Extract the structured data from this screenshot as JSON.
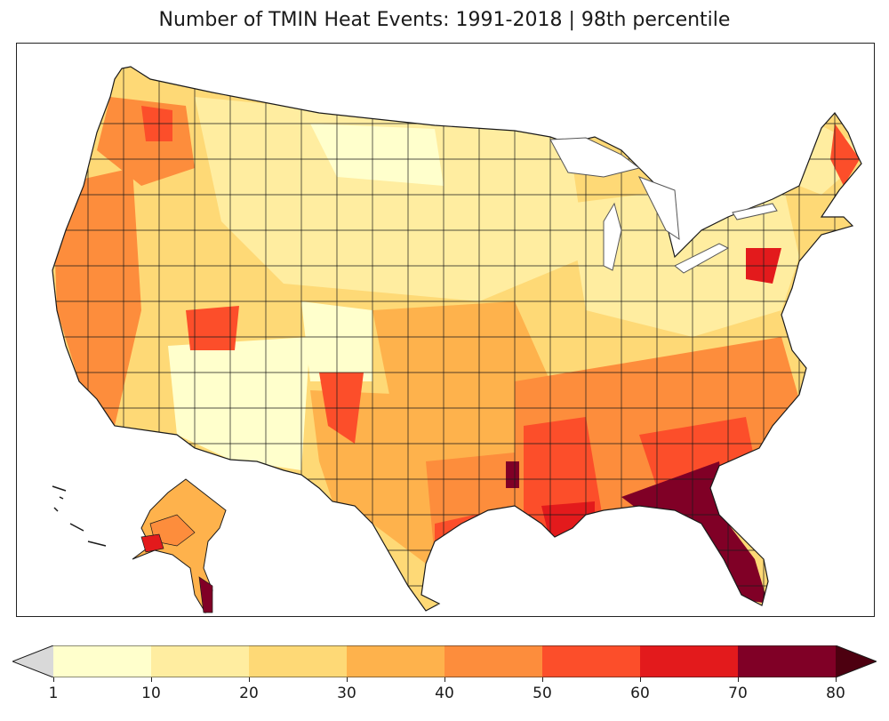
{
  "title": "Number of TMIN Heat Events: 1991-2018 | 98th percentile",
  "map": {
    "region": "Contiguous United States and Alaska",
    "variable": "Number of TMIN heat events"
  },
  "legend": {
    "bins": [
      {
        "range": [
          1,
          10
        ],
        "color": "#ffffcc"
      },
      {
        "range": [
          10,
          20
        ],
        "color": "#ffeda0"
      },
      {
        "range": [
          20,
          30
        ],
        "color": "#fed976"
      },
      {
        "range": [
          30,
          40
        ],
        "color": "#feb24c"
      },
      {
        "range": [
          40,
          50
        ],
        "color": "#fd8d3c"
      },
      {
        "range": [
          50,
          60
        ],
        "color": "#fc4e2a"
      },
      {
        "range": [
          60,
          70
        ],
        "color": "#e31a1c"
      },
      {
        "range": [
          70,
          80
        ],
        "color": "#800026"
      }
    ],
    "under_color": "#d9d9d9",
    "over_color": "#4d0010",
    "ticks": [
      "1",
      "10",
      "20",
      "30",
      "40",
      "50",
      "60",
      "70",
      "80"
    ]
  },
  "colors": {
    "border": "#1a1a1a",
    "lake_outline": "#555555",
    "background": "#ffffff"
  }
}
